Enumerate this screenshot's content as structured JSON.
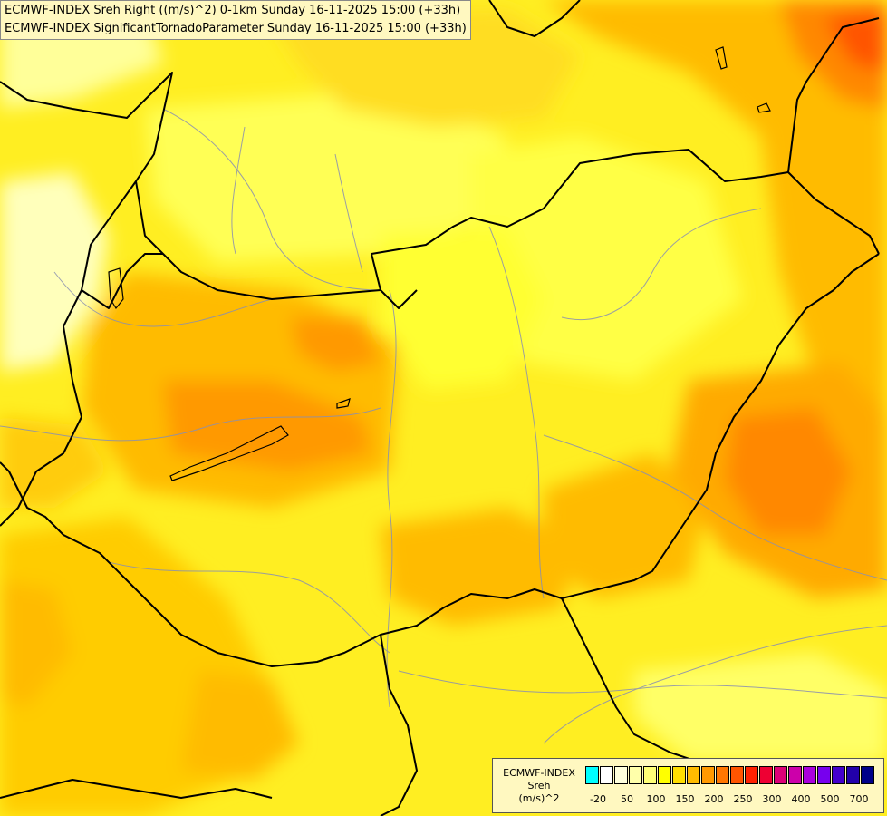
{
  "header": {
    "line1": "ECMWF-INDEX Sreh Right ((m/s)^2) 0-1km Sunday 16-11-2025 15:00 (+33h)",
    "line2": "ECMWF-INDEX SignificantTornadoParameter Sunday 16-11-2025 15:00 (+33h)"
  },
  "legend": {
    "title_line1": "ECMWF-INDEX",
    "title_line2": "Sreh",
    "title_line3": "(m/s)^2",
    "ticks": [
      "-20",
      "50",
      "100",
      "150",
      "200",
      "250",
      "300",
      "400",
      "500",
      "700"
    ],
    "colors": [
      "#00ffff",
      "#ffffff",
      "#ffffdd",
      "#ffffaa",
      "#ffff77",
      "#ffff00",
      "#ffdd00",
      "#ffbb00",
      "#ff9900",
      "#ff7700",
      "#ff5500",
      "#ff2200",
      "#ee0033",
      "#dd0077",
      "#cc00aa",
      "#aa00dd",
      "#7700ee",
      "#4400cc",
      "#2200aa",
      "#000088"
    ]
  }
}
